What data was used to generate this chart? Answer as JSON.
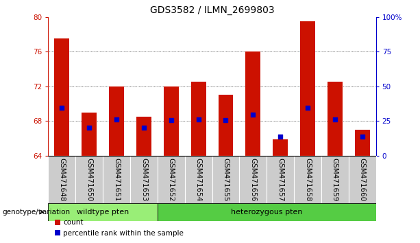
{
  "title": "GDS3582 / ILMN_2699803",
  "categories": [
    "GSM471648",
    "GSM471650",
    "GSM471651",
    "GSM471653",
    "GSM471652",
    "GSM471654",
    "GSM471655",
    "GSM471656",
    "GSM471657",
    "GSM471658",
    "GSM471659",
    "GSM471660"
  ],
  "bar_values": [
    77.5,
    69.0,
    72.0,
    68.5,
    72.0,
    72.5,
    71.0,
    76.0,
    65.9,
    79.5,
    72.5,
    67.0
  ],
  "blue_dot_values": [
    69.5,
    67.2,
    68.2,
    67.2,
    68.1,
    68.2,
    68.1,
    68.7,
    66.2,
    69.5,
    68.2,
    66.2
  ],
  "baseline": 64,
  "ylim": [
    64,
    80
  ],
  "yticks": [
    64,
    68,
    72,
    76,
    80
  ],
  "right_yticks": [
    0,
    25,
    50,
    75,
    100
  ],
  "right_ylim": [
    0,
    100
  ],
  "bar_color": "#cc1100",
  "dot_color": "#0000cc",
  "wildtype_samples": 4,
  "wildtype_label": "wildtype pten",
  "heterozygous_label": "heterozygous pten",
  "wildtype_color": "#99ee77",
  "heterozygous_color": "#55cc44",
  "group_bg_color": "#cccccc",
  "legend_count_label": "count",
  "legend_percentile_label": "percentile rank within the sample",
  "genotype_label": "genotype/variation",
  "title_fontsize": 10,
  "tick_fontsize": 7.5,
  "label_fontsize": 8
}
